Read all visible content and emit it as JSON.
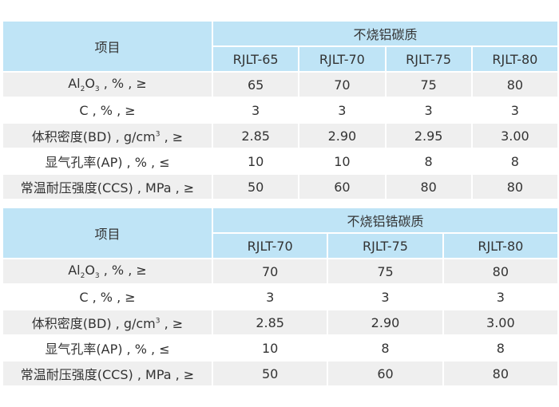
{
  "tables": [
    {
      "corner": "项目",
      "group": "不烧铝碳质",
      "columns": [
        "RJLT-65",
        "RJLT-70",
        "RJLT-75",
        "RJLT-80"
      ],
      "rows": [
        {
          "label": [
            {
              "text": "Al"
            },
            {
              "sub": "2"
            },
            {
              "text": "O"
            },
            {
              "sub": "3"
            },
            {
              "text": " , % , ≥"
            }
          ],
          "cells": [
            "65",
            "70",
            "75",
            "80"
          ]
        },
        {
          "label": [
            {
              "text": "C , % , ≥"
            }
          ],
          "cells": [
            "3",
            "3",
            "3",
            "3"
          ]
        },
        {
          "label": [
            {
              "text": "体积密度(BD) , g/cm"
            },
            {
              "sup": "3"
            },
            {
              "text": " , ≥"
            }
          ],
          "cells": [
            "2.85",
            "2.90",
            "2.95",
            "3.00"
          ]
        },
        {
          "label": [
            {
              "text": "显气孔率(AP) , % , ≤"
            }
          ],
          "cells": [
            "10",
            "10",
            "8",
            "8"
          ]
        },
        {
          "label": [
            {
              "text": "常温耐压强度(CCS) , MPa , ≥"
            }
          ],
          "cells": [
            "50",
            "60",
            "80",
            "80"
          ]
        }
      ]
    },
    {
      "corner": "项目",
      "group": "不烧铝锆碳质",
      "columns": [
        "RJLT-70",
        "RJLT-75",
        "RJLT-80"
      ],
      "rows": [
        {
          "label": [
            {
              "text": "Al"
            },
            {
              "sub": "2"
            },
            {
              "text": "O"
            },
            {
              "sub": "3"
            },
            {
              "text": " , % , ≥"
            }
          ],
          "cells": [
            "70",
            "75",
            "80"
          ]
        },
        {
          "label": [
            {
              "text": "C , % , ≥"
            }
          ],
          "cells": [
            "3",
            "3",
            "3"
          ]
        },
        {
          "label": [
            {
              "text": "体积密度(BD) , g/cm"
            },
            {
              "sup": "3"
            },
            {
              "text": " , ≥"
            }
          ],
          "cells": [
            "2.85",
            "2.90",
            "3.00"
          ]
        },
        {
          "label": [
            {
              "text": "显气孔率(AP) , % , ≤"
            }
          ],
          "cells": [
            "10",
            "8",
            "8"
          ]
        },
        {
          "label": [
            {
              "text": "常温耐压强度(CCS) , MPa , ≥"
            }
          ],
          "cells": [
            "50",
            "60",
            "80"
          ]
        }
      ]
    }
  ]
}
